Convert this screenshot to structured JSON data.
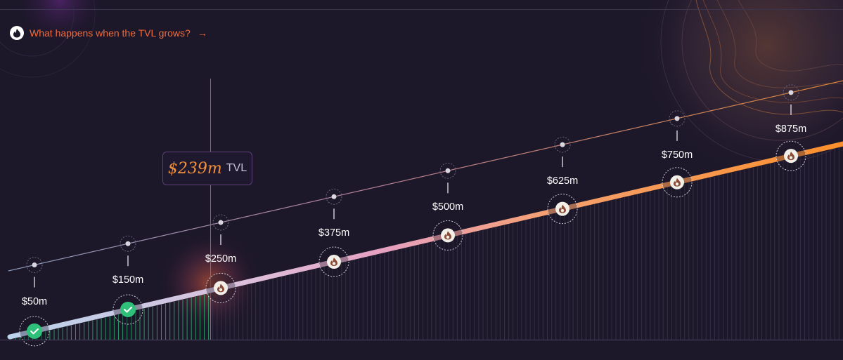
{
  "header": {
    "link_text": "What happens when the TVL grows?",
    "arrow": "→",
    "icon": "flame-icon"
  },
  "current_tvl": {
    "value": "$239m",
    "unit": "TVL",
    "amount_m": 239
  },
  "milestones": [
    {
      "label": "$50m",
      "amount_m": 50,
      "status": "reached"
    },
    {
      "label": "$150m",
      "amount_m": 150,
      "status": "reached"
    },
    {
      "label": "$250m",
      "amount_m": 250,
      "status": "locked"
    },
    {
      "label": "$375m",
      "amount_m": 375,
      "status": "locked"
    },
    {
      "label": "$500m",
      "amount_m": 500,
      "status": "locked"
    },
    {
      "label": "$625m",
      "amount_m": 625,
      "status": "locked"
    },
    {
      "label": "$750m",
      "amount_m": 750,
      "status": "locked"
    },
    {
      "label": "$875m",
      "amount_m": 875,
      "status": "locked"
    }
  ],
  "colors": {
    "accent_orange": "#f26b3a",
    "tvl_orange": "#f2913a",
    "reached_green": "#2fc07a",
    "background": "#1c1729"
  }
}
